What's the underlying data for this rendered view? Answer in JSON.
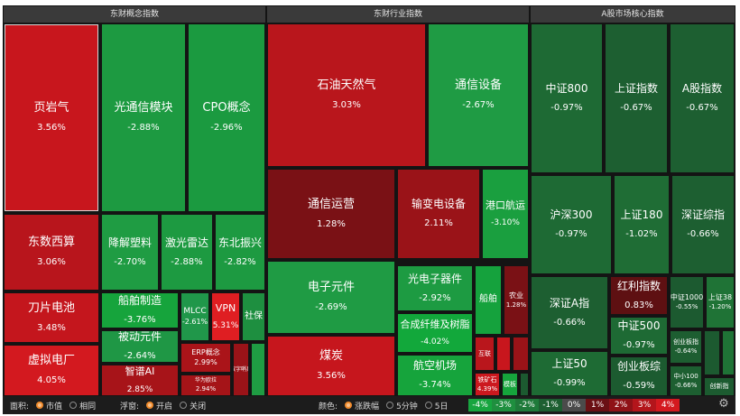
{
  "panels": [
    {
      "key": "concept",
      "title": "东财概念指数"
    },
    {
      "key": "industry",
      "title": "东财行业指数"
    },
    {
      "key": "core",
      "title": "A股市场核心指数"
    }
  ],
  "tiles": [
    {
      "id": "yeyanqi",
      "name": "页岩气",
      "pct": "3.56%",
      "color": "#c8161d"
    },
    {
      "id": "guangtongxin",
      "name": "光通信模块",
      "pct": "-2.88%",
      "color": "#1d9a41"
    },
    {
      "id": "cpo",
      "name": "CPO概念",
      "pct": "-2.96%",
      "color": "#1b9a40"
    },
    {
      "id": "dongshu",
      "name": "东数西算",
      "pct": "3.06%",
      "color": "#b8151c"
    },
    {
      "id": "jiangjie",
      "name": "降解塑料",
      "pct": "-2.70%",
      "color": "#1f9c43"
    },
    {
      "id": "jiguang",
      "name": "激光雷达",
      "pct": "-2.88%",
      "color": "#1d9a41"
    },
    {
      "id": "dongbei",
      "name": "东北振兴",
      "pct": "-2.82%",
      "color": "#1d9a41"
    },
    {
      "id": "daopian",
      "name": "刀片电池",
      "pct": "3.48%",
      "color": "#c4161d"
    },
    {
      "id": "chuanbo",
      "name": "船舶制造",
      "pct": "-3.76%",
      "color": "#16a43c"
    },
    {
      "id": "mlcc",
      "name": "MLCC",
      "pct": "-2.61%",
      "color": "#20974a"
    },
    {
      "id": "vpn",
      "name": "VPN",
      "pct": "5.31%",
      "color": "#df1e22"
    },
    {
      "id": "shebao",
      "name": "社保",
      "pct": "",
      "color": "#1e8f40"
    },
    {
      "id": "beidong",
      "name": "被动元件",
      "pct": "-2.64%",
      "color": "#1f9745"
    },
    {
      "id": "xuni",
      "name": "虚拟电厂",
      "pct": "4.05%",
      "color": "#d3191f"
    },
    {
      "id": "zhipu",
      "name": "智谱AI",
      "pct": "2.85%",
      "color": "#a71419"
    },
    {
      "id": "erp",
      "name": "ERP概念",
      "pct": "2.99%",
      "color": "#aa1419"
    },
    {
      "id": "huawei",
      "name": "华为欧拉",
      "pct": "2.94%",
      "color": "#a51418"
    },
    {
      "id": "shuzi",
      "name": "数字哨兵",
      "pct": "",
      "color": "#9a1318"
    },
    {
      "id": "shiyou",
      "name": "石油天然气",
      "pct": "3.03%",
      "color": "#b9161c"
    },
    {
      "id": "tongxinsb",
      "name": "通信设备",
      "pct": "-2.67%",
      "color": "#1f9b44"
    },
    {
      "id": "tongxinyy",
      "name": "通信运营",
      "pct": "1.28%",
      "color": "#7a1115"
    },
    {
      "id": "shubian",
      "name": "输变电设备",
      "pct": "2.11%",
      "color": "#9a1318"
    },
    {
      "id": "gangkou",
      "name": "港口航运",
      "pct": "-3.10%",
      "color": "#1a9f3f"
    },
    {
      "id": "dianzi",
      "name": "电子元件",
      "pct": "-2.69%",
      "color": "#1f9b44"
    },
    {
      "id": "guangdianzi",
      "name": "光电子器件",
      "pct": "-2.92%",
      "color": "#1d9b42"
    },
    {
      "id": "chuanbo2",
      "name": "船舶",
      "pct": "",
      "color": "#15a23d"
    },
    {
      "id": "nongye",
      "name": "农业",
      "pct": "1.28%",
      "color": "#7a1115"
    },
    {
      "id": "hecheng",
      "name": "合成纤维及树脂",
      "pct": "-4.02%",
      "color": "#12a83b"
    },
    {
      "id": "meitan",
      "name": "煤炭",
      "pct": "3.56%",
      "color": "#c6161d"
    },
    {
      "id": "hangkong",
      "name": "航空机场",
      "pct": "-3.74%",
      "color": "#16a43c"
    },
    {
      "id": "hulian",
      "name": "互联",
      "pct": "",
      "color": "#b9161c"
    },
    {
      "id": "tiekuang",
      "name": "铁矿石",
      "pct": "4.39%",
      "color": "#cc181e"
    },
    {
      "id": "mohu",
      "name": "模板",
      "pct": "",
      "color": "#16a43c"
    },
    {
      "id": "zz800",
      "name": "中证800",
      "pct": "-0.97%",
      "color": "#1e6a34"
    },
    {
      "id": "szzs",
      "name": "上证指数",
      "pct": "-0.67%",
      "color": "#1d5f31"
    },
    {
      "id": "agzs",
      "name": "A股指数",
      "pct": "-0.67%",
      "color": "#1d5f31"
    },
    {
      "id": "hs300",
      "name": "沪深300",
      "pct": "-0.97%",
      "color": "#1e6a34"
    },
    {
      "id": "sz180",
      "name": "上证180",
      "pct": "-1.02%",
      "color": "#1f6d35"
    },
    {
      "id": "szzz",
      "name": "深证综指",
      "pct": "-0.66%",
      "color": "#1d5f31"
    },
    {
      "id": "szazhi",
      "name": "深证A指",
      "pct": "-0.66%",
      "color": "#1d5f31"
    },
    {
      "id": "hongli",
      "name": "红利指数",
      "pct": "0.83%",
      "color": "#5e1012"
    },
    {
      "id": "zz1000",
      "name": "中证1000",
      "pct": "-0.55%",
      "color": "#1c5a30"
    },
    {
      "id": "sz38",
      "name": "上证38",
      "pct": "-1.20%",
      "color": "#1f7336"
    },
    {
      "id": "zz500",
      "name": "中证500",
      "pct": "-0.97%",
      "color": "#1e6a34"
    },
    {
      "id": "sz50",
      "name": "上证50",
      "pct": "-0.99%",
      "color": "#1e6b34"
    },
    {
      "id": "chuangyeb",
      "name": "创业板指",
      "pct": "-0.64%",
      "color": "#1d5e31"
    },
    {
      "id": "zhongxiao",
      "name": "中小100",
      "pct": "-0.66%",
      "color": "#1d5f31"
    },
    {
      "id": "chuangyez",
      "name": "创业板综",
      "pct": "-0.59%",
      "color": "#1c5b30"
    },
    {
      "id": "chuangxin",
      "name": "创新指",
      "pct": "",
      "color": "#1c5b30"
    }
  ],
  "toolbar": {
    "area_label": "面积:",
    "area_opt1": "市值",
    "area_opt2": "相同",
    "float_label": "浮窗:",
    "float_opt1": "开启",
    "float_opt2": "关闭",
    "color_label": "颜色:",
    "color_opt1": "涨跌幅",
    "color_opt2": "5分钟",
    "color_opt3": "5日",
    "legend": [
      {
        "label": "-4%",
        "color": "#17a53f"
      },
      {
        "label": "-3%",
        "color": "#1f8f3f"
      },
      {
        "label": "-2%",
        "color": "#1f7a3a"
      },
      {
        "label": "-1%",
        "color": "#1d5f31"
      },
      {
        "label": "0%",
        "color": "#4b4b4b"
      },
      {
        "label": "1%",
        "color": "#6a1014"
      },
      {
        "label": "2%",
        "color": "#8f1217"
      },
      {
        "label": "3%",
        "color": "#b3151b"
      },
      {
        "label": "4%",
        "color": "#d4191f"
      }
    ]
  }
}
